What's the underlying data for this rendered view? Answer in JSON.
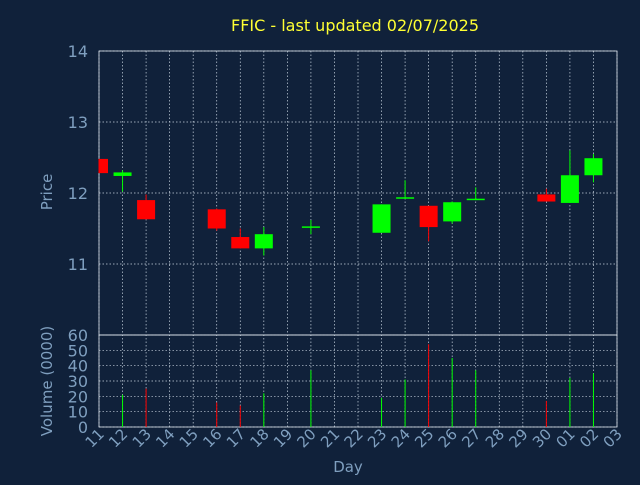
{
  "chart_data": {
    "type": "candlestick",
    "title": "FFIC - last updated 02/07/2025",
    "xlabel": "Day",
    "ylabel": "Price",
    "volume_label": "Volume (0000)",
    "grid": true,
    "x_ticks": [
      "11",
      "12",
      "13",
      "14",
      "15",
      "16",
      "17",
      "18",
      "19",
      "20",
      "21",
      "22",
      "23",
      "24",
      "25",
      "26",
      "27",
      "28",
      "29",
      "30",
      "01",
      "02",
      "03"
    ],
    "price_ylim": [
      10,
      14
    ],
    "price_ticks": [
      "11",
      "12",
      "13",
      "14"
    ],
    "volume_ylim": [
      0,
      60
    ],
    "volume_ticks": [
      "0",
      "10",
      "20",
      "30",
      "40",
      "50",
      "60"
    ],
    "candles": [
      {
        "day": "11",
        "open": 12.48,
        "high": 12.48,
        "low": 12.28,
        "close": 12.28,
        "volume": 0
      },
      {
        "day": "12",
        "open": 12.24,
        "high": 12.32,
        "low": 12.02,
        "close": 12.29,
        "volume": 21
      },
      {
        "day": "13",
        "open": 11.9,
        "high": 11.98,
        "low": 11.63,
        "close": 11.63,
        "volume": 25
      },
      {
        "day": "16",
        "open": 11.77,
        "high": 11.78,
        "low": 11.47,
        "close": 11.5,
        "volume": 16
      },
      {
        "day": "17",
        "open": 11.38,
        "high": 11.5,
        "low": 11.22,
        "close": 11.22,
        "volume": 14
      },
      {
        "day": "18",
        "open": 11.22,
        "high": 11.52,
        "low": 11.12,
        "close": 11.42,
        "volume": 22
      },
      {
        "day": "20",
        "open": 11.52,
        "high": 11.62,
        "low": 11.42,
        "close": 11.53,
        "volume": 37
      },
      {
        "day": "23",
        "open": 11.44,
        "high": 11.84,
        "low": 11.44,
        "close": 11.84,
        "volume": 19
      },
      {
        "day": "24",
        "open": 11.92,
        "high": 12.18,
        "low": 11.92,
        "close": 11.94,
        "volume": 31
      },
      {
        "day": "25",
        "open": 11.82,
        "high": 11.82,
        "low": 11.32,
        "close": 11.52,
        "volume": 54
      },
      {
        "day": "26",
        "open": 11.6,
        "high": 11.88,
        "low": 11.57,
        "close": 11.87,
        "volume": 45
      },
      {
        "day": "27",
        "open": 11.9,
        "high": 12.08,
        "low": 11.9,
        "close": 11.92,
        "volume": 37
      },
      {
        "day": "30",
        "open": 11.98,
        "high": 12.06,
        "low": 11.88,
        "close": 11.88,
        "volume": 17
      },
      {
        "day": "01",
        "open": 11.86,
        "high": 12.6,
        "low": 11.86,
        "close": 12.25,
        "volume": 32
      },
      {
        "day": "02",
        "open": 12.25,
        "high": 12.55,
        "low": 12.15,
        "close": 12.49,
        "volume": 35
      }
    ],
    "colors": {
      "background": "#10213a",
      "up": "#00ff00",
      "down": "#ff0000",
      "title": "#ffff33",
      "axis_text": "#7f9fbf",
      "grid": "#c8d4e0",
      "frame": "#dfe6ee"
    }
  }
}
